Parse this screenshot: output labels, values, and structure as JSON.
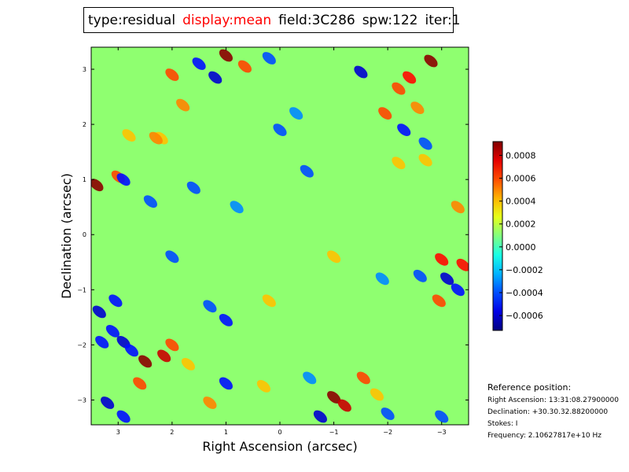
{
  "header": {
    "parts": [
      {
        "text": "type:residual",
        "highlight": false
      },
      {
        "text": "display:mean",
        "highlight": true
      },
      {
        "text": "field:3C286",
        "highlight": false
      },
      {
        "text": "spw:122",
        "highlight": false
      },
      {
        "text": "iter:1",
        "highlight": false
      }
    ],
    "highlight_color": "#ff0000"
  },
  "chart_data": {
    "type": "heatmap",
    "title": "",
    "xlabel": "Right Ascension (arcsec)",
    "ylabel": "Declination (arcsec)",
    "xlim": [
      3.5,
      -3.5
    ],
    "ylim": [
      -3.45,
      3.4
    ],
    "x_ticks": [
      3,
      2,
      1,
      0,
      -1,
      -2,
      -3
    ],
    "x_tick_labels": [
      "3",
      "2",
      "1",
      "0",
      "−1",
      "−2",
      "−3"
    ],
    "y_ticks": [
      3,
      2,
      1,
      0,
      -1,
      -2,
      -3
    ],
    "y_tick_labels": [
      "3",
      "2",
      "1",
      "0",
      "−1",
      "−2",
      "−3"
    ],
    "colormap": "jet",
    "colorbar": {
      "vmin": -0.00073,
      "vmax": 0.00092,
      "ticks": [
        0.0008,
        0.0006,
        0.0004,
        0.0002,
        0.0,
        -0.0002,
        -0.0004,
        -0.0006
      ],
      "tick_labels": [
        "0.0008",
        "0.0006",
        "0.0004",
        "0.0002",
        "0.0000",
        "−0.0002",
        "−0.0004",
        "−0.0006"
      ]
    },
    "background_value": 0.00012,
    "features": [
      {
        "x": 1.0,
        "y": 3.25,
        "value": 0.0009
      },
      {
        "x": 0.65,
        "y": 3.05,
        "value": 0.0006
      },
      {
        "x": 2.0,
        "y": 2.9,
        "value": 0.0006
      },
      {
        "x": 1.8,
        "y": 2.35,
        "value": 0.0005
      },
      {
        "x": 1.2,
        "y": 2.85,
        "value": -0.0006
      },
      {
        "x": 1.5,
        "y": 3.1,
        "value": -0.0005
      },
      {
        "x": 0.2,
        "y": 3.2,
        "value": -0.0004
      },
      {
        "x": -2.8,
        "y": 3.15,
        "value": 0.0009
      },
      {
        "x": -2.4,
        "y": 2.85,
        "value": 0.0007
      },
      {
        "x": -2.2,
        "y": 2.65,
        "value": 0.0006
      },
      {
        "x": -2.55,
        "y": 2.3,
        "value": 0.0005
      },
      {
        "x": -1.95,
        "y": 2.2,
        "value": 0.0006
      },
      {
        "x": -1.5,
        "y": 2.95,
        "value": -0.0006
      },
      {
        "x": -2.3,
        "y": 1.9,
        "value": -0.0005
      },
      {
        "x": -2.7,
        "y": 1.65,
        "value": -0.0004
      },
      {
        "x": 3.4,
        "y": 0.9,
        "value": 0.0009
      },
      {
        "x": 3.0,
        "y": 1.05,
        "value": 0.0006
      },
      {
        "x": 2.9,
        "y": 1.0,
        "value": -0.0005
      },
      {
        "x": 2.4,
        "y": 0.6,
        "value": -0.0004
      },
      {
        "x": 2.2,
        "y": 1.75,
        "value": 0.0004
      },
      {
        "x": 2.8,
        "y": 1.8,
        "value": 0.0004
      },
      {
        "x": -3.3,
        "y": 0.5,
        "value": 0.0005
      },
      {
        "x": -3.0,
        "y": -0.45,
        "value": 0.0007
      },
      {
        "x": -3.4,
        "y": -0.55,
        "value": 0.0007
      },
      {
        "x": -3.1,
        "y": -0.8,
        "value": -0.0006
      },
      {
        "x": -3.3,
        "y": -1.0,
        "value": -0.0005
      },
      {
        "x": -2.95,
        "y": -1.2,
        "value": 0.0006
      },
      {
        "x": -2.6,
        "y": -0.75,
        "value": -0.0004
      },
      {
        "x": 3.05,
        "y": -1.2,
        "value": -0.0005
      },
      {
        "x": 3.35,
        "y": -1.4,
        "value": -0.0006
      },
      {
        "x": 3.1,
        "y": -1.75,
        "value": -0.0005
      },
      {
        "x": 3.3,
        "y": -1.95,
        "value": -0.0005
      },
      {
        "x": 2.9,
        "y": -1.95,
        "value": -0.0006
      },
      {
        "x": 2.75,
        "y": -2.1,
        "value": -0.0005
      },
      {
        "x": 2.5,
        "y": -2.3,
        "value": 0.0009
      },
      {
        "x": 2.15,
        "y": -2.2,
        "value": 0.0008
      },
      {
        "x": 2.0,
        "y": -2.0,
        "value": 0.0006
      },
      {
        "x": 2.6,
        "y": -2.7,
        "value": 0.0006
      },
      {
        "x": 1.7,
        "y": -2.35,
        "value": 0.0004
      },
      {
        "x": 3.2,
        "y": -3.05,
        "value": -0.0006
      },
      {
        "x": 2.9,
        "y": -3.3,
        "value": -0.0005
      },
      {
        "x": 1.0,
        "y": -2.7,
        "value": -0.0005
      },
      {
        "x": 1.3,
        "y": -3.05,
        "value": 0.0005
      },
      {
        "x": -1.0,
        "y": -2.95,
        "value": 0.0009
      },
      {
        "x": -1.2,
        "y": -3.1,
        "value": 0.0008
      },
      {
        "x": -1.55,
        "y": -2.6,
        "value": 0.0006
      },
      {
        "x": -0.75,
        "y": -3.3,
        "value": -0.0006
      },
      {
        "x": -0.55,
        "y": -2.6,
        "value": -0.0003
      },
      {
        "x": -2.0,
        "y": -3.25,
        "value": -0.0004
      },
      {
        "x": -3.0,
        "y": -3.3,
        "value": -0.0004
      },
      {
        "x": -1.8,
        "y": -2.9,
        "value": 0.0004
      },
      {
        "x": 0.3,
        "y": -2.75,
        "value": 0.0004
      },
      {
        "x": 1.0,
        "y": -1.55,
        "value": -0.0005
      },
      {
        "x": 1.3,
        "y": -1.3,
        "value": -0.0004
      },
      {
        "x": 2.0,
        "y": -0.4,
        "value": -0.0004
      },
      {
        "x": 1.6,
        "y": 0.85,
        "value": -0.0004
      },
      {
        "x": 0.8,
        "y": 0.5,
        "value": -0.0003
      },
      {
        "x": 0.0,
        "y": 1.9,
        "value": -0.0004
      },
      {
        "x": -0.3,
        "y": 2.2,
        "value": -0.0003
      },
      {
        "x": -0.5,
        "y": 1.15,
        "value": -0.0004
      },
      {
        "x": -1.0,
        "y": -0.4,
        "value": 0.0004
      },
      {
        "x": -1.9,
        "y": -0.8,
        "value": -0.0003
      },
      {
        "x": 0.2,
        "y": -1.2,
        "value": 0.0004
      },
      {
        "x": 2.3,
        "y": 1.75,
        "value": 0.0005
      },
      {
        "x": -2.2,
        "y": 1.3,
        "value": 0.0004
      },
      {
        "x": -2.7,
        "y": 1.35,
        "value": 0.0004
      }
    ]
  },
  "reference": {
    "heading": "Reference position:",
    "ra": "Right Ascension: 13:31:08.27900000",
    "dec": "Declination: +30.30.32.88200000",
    "stokes": "Stokes: I",
    "freq": "Frequency: 2.10627817e+10 Hz"
  }
}
